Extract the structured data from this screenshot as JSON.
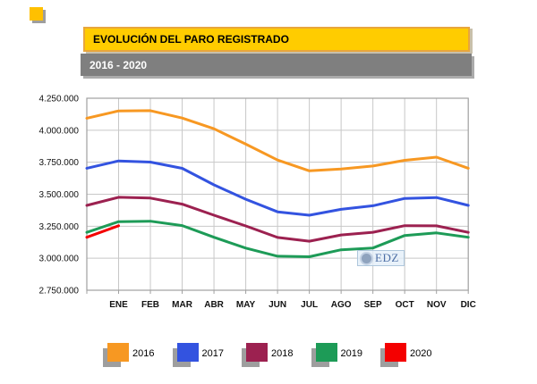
{
  "decor": {
    "corner_square_color": "#FFC000"
  },
  "header": {
    "title": "EVOLUCIÓN DEL PARO REGISTRADO",
    "subtitle": "2016 - 2020",
    "title_bg": "#FFCC00",
    "subtitle_bg": "#7F7F7F"
  },
  "watermark": {
    "text": "EDZ"
  },
  "chart_data": {
    "type": "line",
    "title": "EVOLUCIÓN DEL PARO REGISTRADO",
    "subtitle": "2016 - 2020",
    "x_categories": [
      "ENE",
      "FEB",
      "MAR",
      "ABR",
      "MAY",
      "JUN",
      "JUL",
      "AGO",
      "SEP",
      "OCT",
      "NOV",
      "DIC"
    ],
    "y_tick_labels": [
      "4.250.000",
      "4.000.000",
      "3.750.000",
      "3.500.000",
      "3.250.000",
      "3.000.000",
      "2.750.000"
    ],
    "ylim": [
      2750000,
      4250000
    ],
    "grid": true,
    "legend_position": "bottom",
    "note": "each line begins at the left axis with the previous December value; 2020 has data only through ENE",
    "axis_colors": {
      "grid": "#C8C8C8",
      "border": "#A0A0A0",
      "tick_text": "#111111"
    },
    "series": [
      {
        "name": "2016",
        "color": "#F79822",
        "prev_dec": 4093508,
        "values": [
          4150755,
          4152986,
          4094770,
          4011171,
          3891403,
          3767054,
          3683061,
          3697496,
          3720297,
          3764982,
          3789823,
          3702974
        ]
      },
      {
        "name": "2017",
        "color": "#3353E0",
        "prev_dec": 3702974,
        "values": [
          3760231,
          3750876,
          3702317,
          3573036,
          3461128,
          3362811,
          3335924,
          3382324,
          3410182,
          3467026,
          3474281,
          3412781
        ]
      },
      {
        "name": "2018",
        "color": "#9C2150",
        "prev_dec": 3412781,
        "values": [
          3476528,
          3470248,
          3422551,
          3335868,
          3252130,
          3162162,
          3132844,
          3182060,
          3202509,
          3254703,
          3252867,
          3202297
        ]
      },
      {
        "name": "2019",
        "color": "#1D9B57",
        "prev_dec": 3202297,
        "values": [
          3285761,
          3289040,
          3255084,
          3163566,
          3079491,
          3015686,
          3011433,
          3065804,
          3079711,
          3177659,
          3198184,
          3163605
        ]
      },
      {
        "name": "2020",
        "color": "#F40000",
        "prev_dec": 3163605,
        "values": [
          3253853,
          null,
          null,
          null,
          null,
          null,
          null,
          null,
          null,
          null,
          null,
          null
        ]
      }
    ]
  }
}
